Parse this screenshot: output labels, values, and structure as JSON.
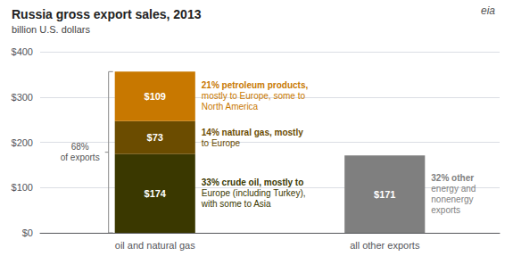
{
  "chart_data": {
    "type": "bar",
    "title": "Russia gross export sales, 2013",
    "subtitle": "billion U.S. dollars",
    "logo_text": "eia",
    "categories": [
      "oil and natural gas",
      "all other exports"
    ],
    "stacked": true,
    "data_labels": true,
    "series": [
      {
        "color": "#3a3800",
        "values": [
          174,
          null
        ],
        "value_labels": [
          "$174",
          null
        ],
        "annotation": "33% crude oil, mostly to\nEurope (including Turkey),\nwith some to Asia"
      },
      {
        "color": "#6b4c00",
        "values": [
          73,
          null
        ],
        "value_labels": [
          "$73",
          null
        ],
        "annotation": "14% natural gas, mostly\nto Europe"
      },
      {
        "color": "#c87800",
        "values": [
          109,
          null
        ],
        "value_labels": [
          "$109",
          null
        ],
        "annotation": "21% petroleum products,\nmostly to Europe, some to\nNorth America"
      },
      {
        "color": "#7f7f7f",
        "values": [
          null,
          171
        ],
        "value_labels": [
          null,
          "$171"
        ],
        "annotation": "32% other\nenergy and\nnonenergy\nexports"
      }
    ],
    "brace": {
      "category": "oil and natural gas",
      "text": "68%\nof exports"
    },
    "ylim": [
      0,
      400
    ],
    "yticks": [
      {
        "value": 0,
        "label": "$0"
      },
      {
        "value": 100,
        "label": "$100"
      },
      {
        "value": 200,
        "label": "$200"
      },
      {
        "value": 300,
        "label": "$300"
      },
      {
        "value": 400,
        "label": "$400"
      }
    ],
    "grid": true
  }
}
